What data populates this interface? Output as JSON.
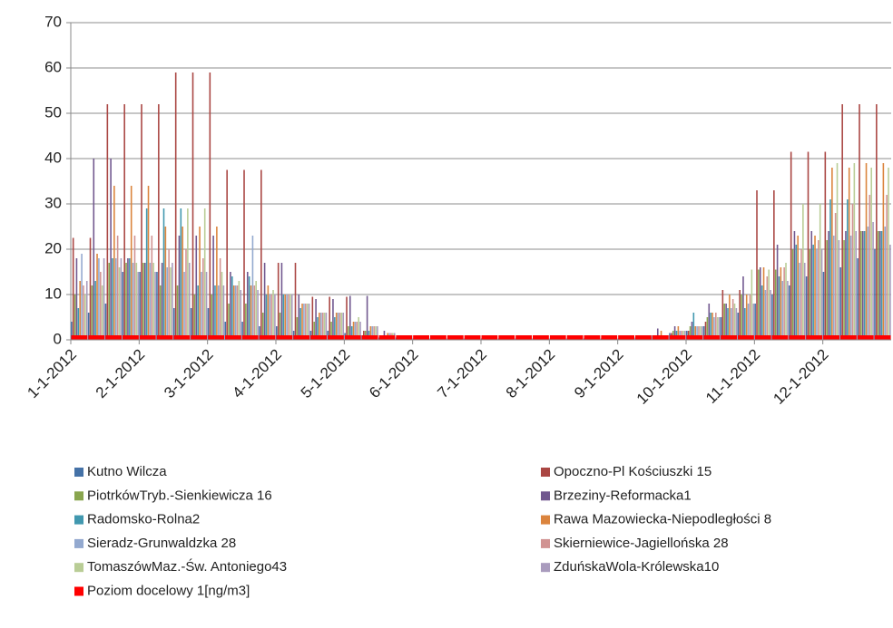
{
  "chart_data": {
    "type": "bar",
    "categories": [
      "1-1-2012",
      null,
      null,
      null,
      "2-1-2012",
      null,
      null,
      null,
      "3-1-2012",
      null,
      null,
      null,
      "4-1-2012",
      null,
      null,
      null,
      "5-1-2012",
      null,
      null,
      null,
      "6-1-2012",
      null,
      null,
      null,
      "7-1-2012",
      null,
      null,
      null,
      "8-1-2012",
      null,
      null,
      null,
      "9-1-2012",
      null,
      null,
      null,
      "10-1-2012",
      null,
      null,
      null,
      "11-1-2012",
      null,
      null,
      null,
      "12-1-2012",
      null,
      null,
      null
    ],
    "series": [
      {
        "name": "Kutno Wilcza",
        "color": "#4572a7",
        "values": [
          4,
          6,
          8,
          15,
          15,
          15,
          7,
          7,
          7,
          4,
          4,
          3,
          3,
          2,
          2,
          2,
          1.5,
          1,
          0.5,
          0.5,
          0.3,
          0.3,
          0.3,
          0.3,
          0.3,
          0.3,
          0.3,
          0.3,
          0.3,
          0.3,
          0.3,
          0.3,
          0.3,
          0.5,
          1,
          1.5,
          2,
          3,
          5,
          6,
          8,
          10,
          12,
          14,
          15,
          16,
          18,
          20
        ]
      },
      {
        "name": "Opoczno-Pl Kościuszki 15",
        "color": "#aa4643",
        "values": [
          22.5,
          22.5,
          52,
          52,
          52,
          52,
          59,
          59,
          59,
          37.5,
          37.5,
          37.5,
          17,
          17,
          9.5,
          9.5,
          9.5,
          2,
          1,
          0.5,
          0.5,
          0.5,
          0.5,
          0.5,
          0.5,
          0.5,
          0.5,
          0.5,
          0.5,
          0.5,
          0.5,
          0.5,
          0.5,
          0.5,
          1,
          1.5,
          2,
          4,
          11,
          11,
          33,
          33,
          41.5,
          41.5,
          41.5,
          52,
          52,
          52
        ]
      },
      {
        "name": "PiotrkówTryb.-Sienkiewicza 16",
        "color": "#89a54e",
        "values": [
          10,
          12,
          17,
          17,
          17,
          12,
          12,
          10,
          10,
          8,
          8,
          6,
          6,
          5,
          4,
          4,
          3,
          2,
          1,
          0.5,
          0.3,
          0.3,
          0.3,
          0.3,
          0.3,
          0.3,
          0.3,
          0.3,
          0.3,
          0.3,
          0.3,
          0.3,
          0.3,
          0.5,
          1,
          2,
          3,
          5,
          8,
          10,
          15.5,
          15.5,
          20,
          20,
          22,
          22,
          24,
          24
        ]
      },
      {
        "name": "Brzeziny-Reformacka1",
        "color": "#71588f",
        "values": [
          18,
          40,
          40,
          18,
          17,
          17,
          23,
          23,
          23,
          15,
          15,
          17,
          17,
          10,
          9,
          9,
          9.7,
          9.7,
          2,
          1,
          0.5,
          0.5,
          0.5,
          0.5,
          0.5,
          0.5,
          0.5,
          0.5,
          0.5,
          0.5,
          0.5,
          0.5,
          0.5,
          1,
          2.5,
          3,
          4,
          8,
          8,
          14,
          16,
          21,
          24,
          24,
          24,
          24,
          24,
          24
        ]
      },
      {
        "name": "Radomsko-Rolna2",
        "color": "#4198af",
        "values": [
          7,
          13,
          18,
          18,
          29,
          29,
          29,
          12,
          12,
          14,
          14,
          10,
          10,
          7,
          5,
          5,
          3,
          2,
          1,
          0.5,
          0.3,
          0.3,
          0.3,
          0.3,
          0.3,
          0.3,
          0.3,
          0.3,
          0.3,
          0.3,
          0.3,
          0.3,
          0.3,
          0.5,
          1,
          2,
          6,
          6,
          7,
          7,
          12,
          14,
          21,
          21,
          31,
          31,
          24,
          24
        ]
      },
      {
        "name": "Rawa Mazowiecka-Niepodległości 8",
        "color": "#db843d",
        "values": [
          13,
          19,
          34,
          34,
          34,
          25,
          25,
          25,
          25,
          12,
          12,
          12,
          10,
          8,
          6,
          6,
          4,
          3,
          1.5,
          1,
          0.5,
          0.5,
          0.5,
          0.5,
          0.5,
          0.5,
          0.5,
          0.5,
          0.5,
          0.5,
          0.5,
          0.5,
          0.5,
          1,
          2,
          3,
          3,
          6,
          10,
          10,
          16,
          16,
          23,
          23,
          38,
          38,
          39,
          39
        ]
      },
      {
        "name": "Sieradz-Grunwaldzka 28",
        "color": "#93a9cf",
        "values": [
          19,
          18,
          18,
          17,
          17,
          16,
          15,
          15,
          12,
          12,
          23,
          10,
          10,
          8,
          6,
          6,
          4,
          3,
          1.5,
          1,
          0.3,
          0.3,
          0.3,
          0.3,
          0.3,
          0.3,
          0.3,
          0.3,
          0.3,
          0.3,
          0.3,
          0.3,
          0.3,
          0.5,
          1,
          2,
          3,
          5,
          7,
          8,
          11,
          13,
          17,
          20,
          23,
          23,
          25,
          25
        ]
      },
      {
        "name": "Skierniewice-Jagiellońska 28",
        "color": "#d19392",
        "values": [
          12,
          15,
          23,
          23,
          23,
          20,
          20,
          18,
          18,
          12,
          12,
          10,
          10,
          8,
          6,
          6,
          4,
          3,
          1.5,
          1,
          0.3,
          0.3,
          0.3,
          0.3,
          0.3,
          0.3,
          0.3,
          0.3,
          0.3,
          0.3,
          0.3,
          0.3,
          0.3,
          0.5,
          1,
          2,
          3,
          6,
          9,
          10,
          14,
          16,
          20,
          22,
          28,
          30,
          32,
          32
        ]
      },
      {
        "name": "TomaszówMaz.-Św. Antoniego43",
        "color": "#b9cd96",
        "values": [
          10,
          12,
          16,
          17,
          17,
          16,
          29,
          29,
          15,
          13,
          13,
          11,
          10,
          8,
          6,
          6,
          5,
          3,
          1.5,
          1,
          0.3,
          0.3,
          0.3,
          0.3,
          0.3,
          0.3,
          0.3,
          0.3,
          0.3,
          0.3,
          0.3,
          0.3,
          0.3,
          0.5,
          1,
          2,
          3,
          5,
          8,
          15.5,
          15.5,
          17,
          30,
          30,
          39,
          39,
          38,
          38
        ]
      },
      {
        "name": "ZduńskaWola-Królewska10",
        "color": "#a99bbd",
        "values": [
          13,
          18,
          18,
          15,
          15,
          17,
          17,
          15,
          12,
          11,
          11,
          10,
          10,
          8,
          6,
          6,
          4,
          3,
          1.5,
          1,
          0.3,
          0.3,
          0.3,
          0.3,
          0.3,
          0.3,
          0.3,
          0.3,
          0.3,
          0.3,
          0.3,
          0.3,
          0.3,
          0.5,
          1,
          2,
          3,
          5,
          7,
          8,
          11,
          13,
          17,
          20,
          22,
          24,
          26,
          21
        ]
      },
      {
        "name": "Poziom docelowy 1[ng/m3]",
        "color": "#ff0000",
        "values": [
          1,
          1,
          1,
          1,
          1,
          1,
          1,
          1,
          1,
          1,
          1,
          1,
          1,
          1,
          1,
          1,
          1,
          1,
          1,
          1,
          1,
          1,
          1,
          1,
          1,
          1,
          1,
          1,
          1,
          1,
          1,
          1,
          1,
          1,
          1,
          1,
          1,
          1,
          1,
          1,
          1,
          1,
          1,
          1,
          1,
          1,
          1,
          1
        ]
      }
    ],
    "ylim": [
      0,
      70
    ],
    "yticks": [
      0,
      10,
      20,
      30,
      40,
      50,
      60,
      70
    ],
    "grid": true
  }
}
